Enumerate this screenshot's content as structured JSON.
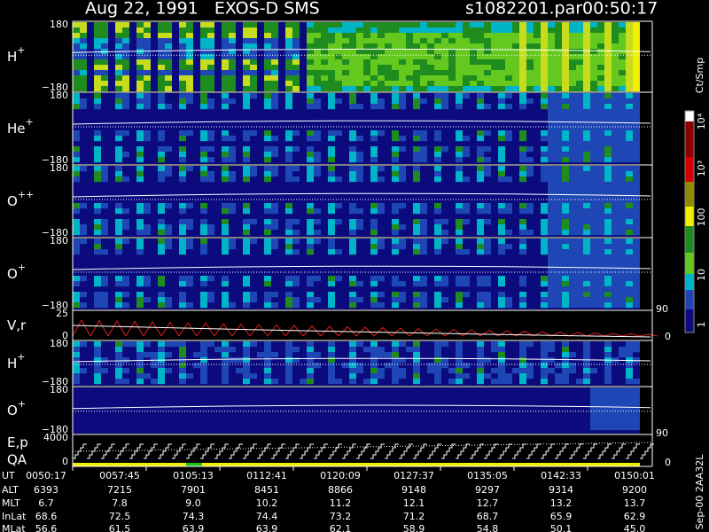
{
  "header": {
    "title": "Aug 22, 1991   EXOS-D SMS",
    "file": "s1082201.par",
    "time": "00:50:17"
  },
  "panels": [
    {
      "label": "H",
      "sup": "+",
      "top": "180",
      "bottom": "−180"
    },
    {
      "label": "He",
      "sup": "+",
      "top": "180",
      "bottom": "−180"
    },
    {
      "label": "O",
      "sup": "++",
      "top": "180",
      "bottom": "−180"
    },
    {
      "label": "O",
      "sup": "+",
      "top": "180",
      "bottom": "−180"
    },
    {
      "label": "V,r",
      "top": "25",
      "bottom": "0",
      "right_top": "90",
      "right_bottom": "0"
    },
    {
      "label": "H",
      "sup": "+",
      "top": "180",
      "bottom": "−180"
    },
    {
      "label": "O",
      "sup": "+",
      "top": "180",
      "bottom": "−180"
    },
    {
      "label": "E,p",
      "label2": "QA",
      "top": "4000",
      "bottom": "0",
      "right_top": "90",
      "right_bottom": "0"
    }
  ],
  "colorbar": {
    "title": "Ct/Smp",
    "ticks": [
      "1",
      "10",
      "100",
      "10³",
      "10⁴"
    ]
  },
  "table": {
    "rows": [
      {
        "label": "UT",
        "values": [
          "0050:17",
          "0057:45",
          "0105:13",
          "0112:41",
          "0120:09",
          "0127:37",
          "0135:05",
          "0142:33",
          "0150:01"
        ]
      },
      {
        "label": "ALT",
        "values": [
          "6393",
          "7215",
          "7901",
          "8451",
          "8866",
          "9148",
          "9297",
          "9314",
          "9200"
        ]
      },
      {
        "label": "MLT",
        "values": [
          "6.7",
          "7.8",
          "9.0",
          "10.2",
          "11.2",
          "12.1",
          "12.7",
          "13.2",
          "13.7"
        ]
      },
      {
        "label": "InLat",
        "values": [
          "68.6",
          "72.5",
          "74.3",
          "74.4",
          "73.2",
          "71.2",
          "68.7",
          "65.9",
          "62.9"
        ]
      },
      {
        "label": "MLat",
        "values": [
          "56.6",
          "61.5",
          "63.9",
          "63.9",
          "62.1",
          "58.9",
          "54.8",
          "50.1",
          "45.0"
        ]
      }
    ]
  },
  "footer_note": "Sep-00 2AA32L"
}
